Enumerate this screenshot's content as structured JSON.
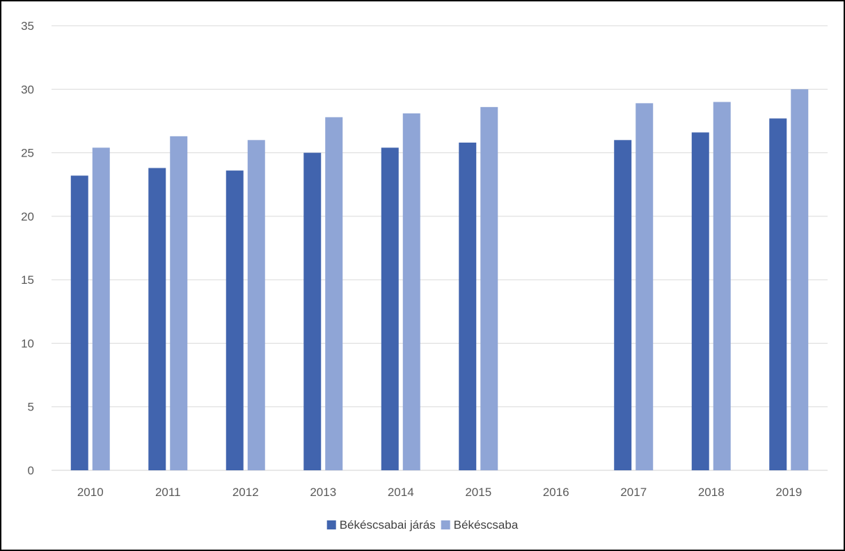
{
  "chart_data": {
    "type": "bar",
    "categories": [
      "2010",
      "2011",
      "2012",
      "2013",
      "2014",
      "2015",
      "2016",
      "2017",
      "2018",
      "2019"
    ],
    "series": [
      {
        "name": "Békéscsabai járás",
        "color": "#4164AE",
        "values": [
          23.2,
          23.8,
          23.6,
          25.0,
          25.4,
          25.8,
          null,
          26.0,
          26.6,
          27.7
        ]
      },
      {
        "name": "Békéscsaba",
        "color": "#8FA5D6",
        "values": [
          25.4,
          26.3,
          26.0,
          27.8,
          28.1,
          28.6,
          null,
          28.9,
          29.0,
          30.0
        ]
      }
    ],
    "ylim": [
      0,
      35
    ],
    "yticks": [
      "0",
      "5",
      "10",
      "15",
      "20",
      "25",
      "30",
      "35"
    ],
    "grid": true,
    "legend_position": "bottom",
    "title": "",
    "xlabel": "",
    "ylabel": ""
  }
}
